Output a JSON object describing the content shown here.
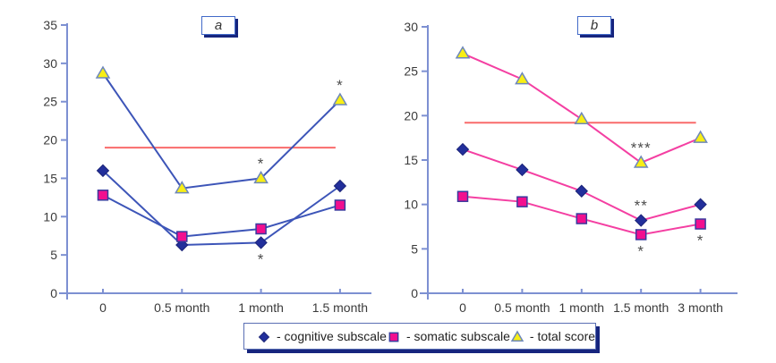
{
  "figure": {
    "background": "#ffffff"
  },
  "colors": {
    "axis": "#7d90d2",
    "tick_text": "#3b3b3b",
    "reference_line": "#f96b6b",
    "chart_a_line": "#3d55b8",
    "chart_b_line": "#f43fa2",
    "diamond_fill": "#222f9b",
    "diamond_stroke": "#1a2377",
    "square_fill": "#f20f8f",
    "square_stroke": "#3a3a9e",
    "triangle_fill": "#f8ee15",
    "triangle_stroke": "#6d87bb",
    "annotation": "#4d4d4d",
    "box_border": "#4169c8",
    "box_shadow": "#16257e"
  },
  "legend": {
    "items": [
      {
        "marker": "diamond",
        "label": "- cognitive subscale"
      },
      {
        "marker": "square",
        "label": "- somatic subscale"
      },
      {
        "marker": "triangle",
        "label": "- total score"
      }
    ]
  },
  "chart_data": [
    {
      "type": "line",
      "title": "a",
      "categories": [
        "0",
        "0.5 month",
        "1 month",
        "1.5 month"
      ],
      "ylim": [
        0,
        35
      ],
      "ytick_step": 5,
      "grid": false,
      "reference_line": 19,
      "line_color": "#3d55b8",
      "series": [
        {
          "name": "cognitive subscale",
          "marker": "diamond",
          "values": [
            16,
            6.3,
            6.6,
            14
          ]
        },
        {
          "name": "somatic subscale",
          "marker": "square",
          "values": [
            12.8,
            7.4,
            8.4,
            11.5
          ]
        },
        {
          "name": "total score",
          "marker": "triangle",
          "values": [
            28.7,
            13.7,
            15,
            25.2
          ]
        }
      ],
      "annotations": [
        {
          "series": "total score",
          "index": 2,
          "text": "*",
          "position": "above"
        },
        {
          "series": "total score",
          "index": 3,
          "text": "*",
          "position": "above"
        },
        {
          "series": "cognitive subscale",
          "index": 2,
          "text": "*",
          "position": "below"
        }
      ]
    },
    {
      "type": "line",
      "title": "b",
      "categories": [
        "0",
        "0.5 month",
        "1 month",
        "1.5 month",
        "3 month"
      ],
      "ylim": [
        0,
        30
      ],
      "ytick_step": 5,
      "grid": false,
      "reference_line": 19.2,
      "line_color": "#f43fa2",
      "series": [
        {
          "name": "cognitive subscale",
          "marker": "diamond",
          "values": [
            16.2,
            13.9,
            11.5,
            8.2,
            10
          ]
        },
        {
          "name": "somatic subscale",
          "marker": "square",
          "values": [
            10.9,
            10.3,
            8.4,
            6.6,
            7.8
          ]
        },
        {
          "name": "total score",
          "marker": "triangle",
          "values": [
            27,
            24.1,
            19.6,
            14.7,
            17.5
          ]
        }
      ],
      "annotations": [
        {
          "series": "total score",
          "index": 3,
          "text": "***",
          "position": "above"
        },
        {
          "series": "cognitive subscale",
          "index": 3,
          "text": "**",
          "position": "above"
        },
        {
          "series": "somatic subscale",
          "index": 3,
          "text": "*",
          "position": "below"
        },
        {
          "series": "somatic subscale",
          "index": 4,
          "text": "*",
          "position": "below"
        }
      ]
    }
  ]
}
